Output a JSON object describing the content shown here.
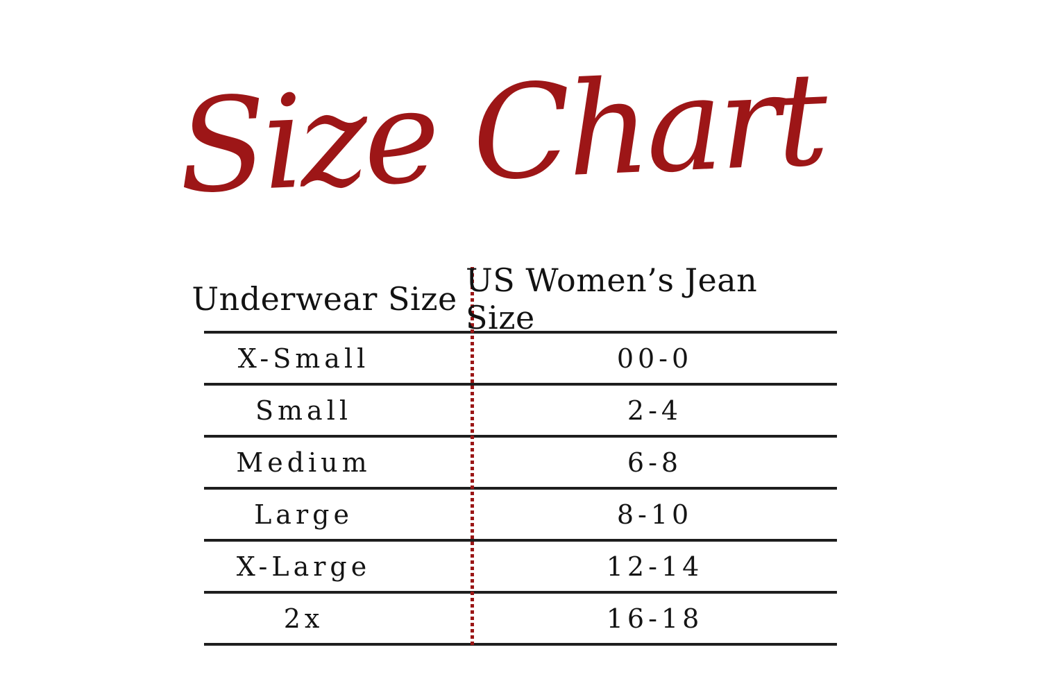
{
  "title": "Size Chart",
  "theme": {
    "accent_red": "#9D1617",
    "dotted_line_red": "#9B1616",
    "rule_color": "#1E1E1E",
    "text_color": "#141414",
    "background": "#FFFFFF"
  },
  "chart_data": {
    "type": "table",
    "title": "Size Chart",
    "columns": [
      "Underwear Size",
      "US Women’s Jean Size"
    ],
    "rows": [
      [
        "X-Small",
        "00-0"
      ],
      [
        "Small",
        "2-4"
      ],
      [
        "Medium",
        "6-8"
      ],
      [
        "Large",
        "8-10"
      ],
      [
        "X-Large",
        "12-14"
      ],
      [
        "2x",
        "16-18"
      ]
    ],
    "layout_hints": {
      "column_divider": "red dotted vertical line",
      "row_separators": "solid dark horizontal rules",
      "alignment": "centered cells"
    }
  }
}
